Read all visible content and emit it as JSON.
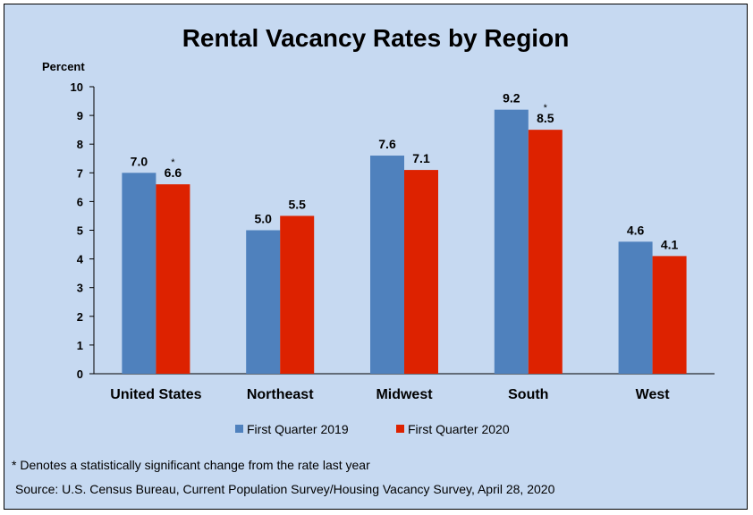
{
  "chart_data": {
    "type": "bar",
    "title": "Rental Vacancy Rates by Region",
    "ylabel": "Percent",
    "xlabel": "",
    "ylim": [
      0,
      10
    ],
    "yticks": [
      "0",
      "1",
      "2",
      "3",
      "4",
      "5",
      "6",
      "7",
      "8",
      "9",
      "10"
    ],
    "categories": [
      "United States",
      "Northeast",
      "Midwest",
      "South",
      "West"
    ],
    "series": [
      {
        "name": "First Quarter 2019",
        "color": "#4f81bd",
        "values": [
          7.0,
          5.0,
          7.6,
          9.2,
          4.6
        ],
        "labels": [
          "7.0",
          "5.0",
          "7.6",
          "9.2",
          "4.6"
        ],
        "significant": [
          false,
          false,
          false,
          false,
          false
        ]
      },
      {
        "name": "First Quarter 2020",
        "color": "#dd2200",
        "values": [
          6.6,
          5.5,
          7.1,
          8.5,
          4.1
        ],
        "labels": [
          "6.6",
          "5.5",
          "7.1",
          "8.5",
          "4.1"
        ],
        "significant": [
          true,
          false,
          false,
          true,
          false
        ]
      }
    ],
    "significance_marker": "*",
    "grid": false,
    "legend_position": "bottom"
  },
  "footnote": "* Denotes a statistically significant change from the rate last year",
  "source": "Source: U.S. Census Bureau, Current Population Survey/Housing Vacancy Survey, April 28, 2020"
}
